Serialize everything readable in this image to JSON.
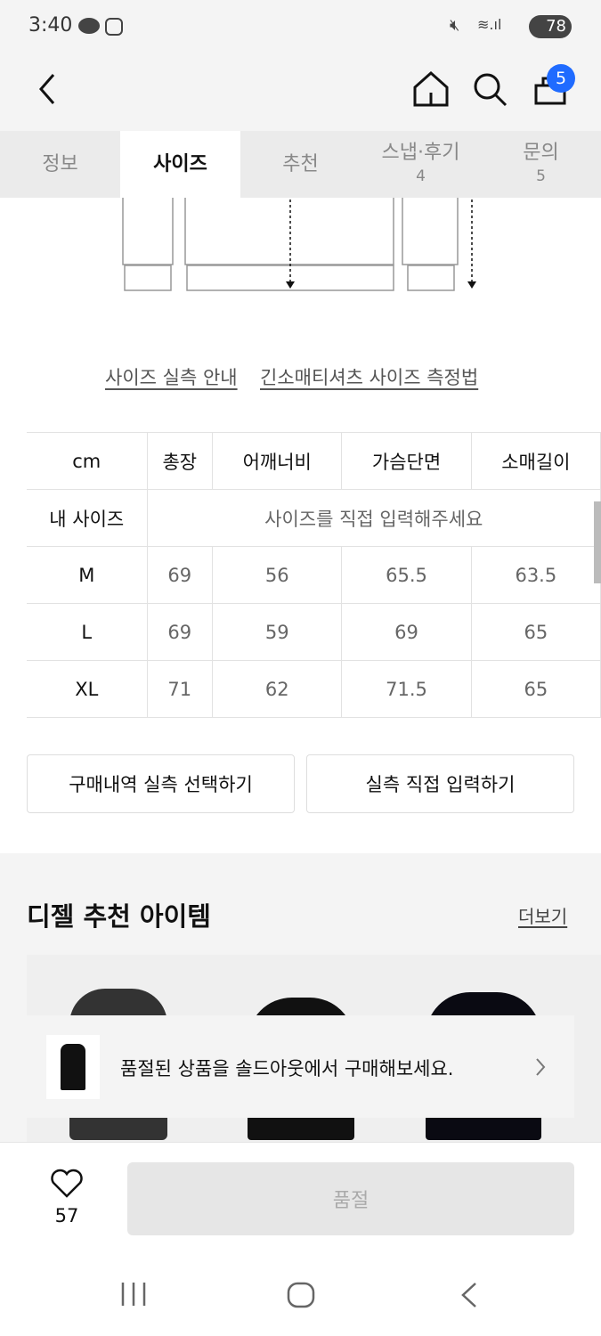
{
  "status": {
    "time": "3:40",
    "battery": "78"
  },
  "header": {
    "cart_count": "5"
  },
  "tabs": [
    {
      "label": "정보"
    },
    {
      "label": "사이즈"
    },
    {
      "label": "추천"
    },
    {
      "label": "스냅·후기",
      "count": "4"
    },
    {
      "label": "문의",
      "count": "5"
    }
  ],
  "links": {
    "guide": "사이즈 실측 안내",
    "measure": "긴소매티셔츠 사이즈 측정법"
  },
  "size_table": {
    "headers": [
      "cm",
      "총장",
      "어깨너비",
      "가슴단면",
      "소매길이"
    ],
    "my_size": {
      "label": "내 사이즈",
      "placeholder": "사이즈를 직접 입력해주세요"
    },
    "rows": [
      [
        "M",
        "69",
        "56",
        "65.5",
        "63.5"
      ],
      [
        "L",
        "69",
        "59",
        "69",
        "65"
      ],
      [
        "XL",
        "71",
        "62",
        "71.5",
        "65"
      ]
    ]
  },
  "buttons": {
    "purchase_history": "구매내역 실측 선택하기",
    "manual_input": "실측 직접 입력하기"
  },
  "recommend": {
    "title": "디젤 추천 아이템",
    "more": "더보기",
    "banner": "품절된 상품을 솔드아웃에서 구매해보세요."
  },
  "bottom": {
    "likes": "57",
    "soldout": "품절"
  },
  "colors": {
    "badge": "#1f6bff",
    "soldout_bg": "#e6e6e6"
  }
}
